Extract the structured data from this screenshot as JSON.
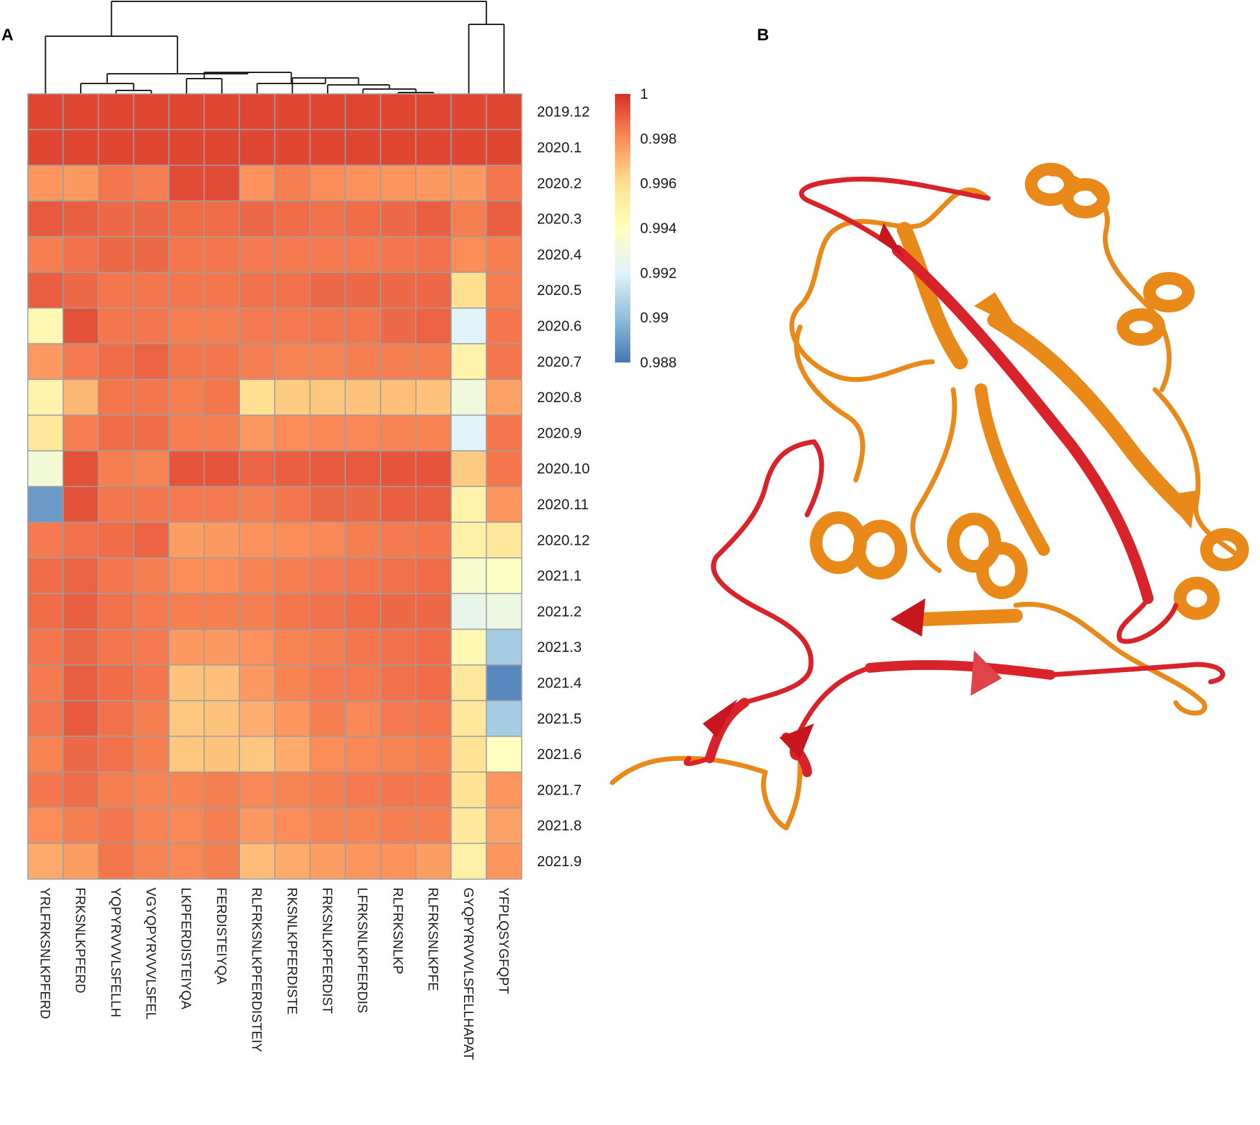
{
  "panels": {
    "a_label": "A",
    "b_label": "B"
  },
  "chart_data": {
    "type": "heatmap",
    "title": "",
    "rows": [
      "2019.12",
      "2020.1",
      "2020.2",
      "2020.3",
      "2020.4",
      "2020.5",
      "2020.6",
      "2020.7",
      "2020.8",
      "2020.9",
      "2020.10",
      "2020.11",
      "2020.12",
      "2021.1",
      "2021.2",
      "2021.3",
      "2021.4",
      "2021.5",
      "2021.6",
      "2021.7",
      "2021.8",
      "2021.9"
    ],
    "columns": [
      "YRLFRKSNLKPFERD",
      "FRKSNLKPFERD",
      "YQPYRVVVLSFELLH",
      "VGYQPYRVVVLSFEL",
      "LKPFERDISTEIYQA",
      "FERDISTEIYQA",
      "RLFRKSNLKPFERDISTEIY",
      "RKSNLKPFERDISTE",
      "FRKSNLKPFERDIST",
      "LFRKSNLKPFERDIS",
      "RLFRKSNLKP",
      "RLFRKSNLKPFE",
      "GYQPYRVVVLSFELLHAPAT",
      "YFPLQSYGFQPT"
    ],
    "values": [
      [
        0.9995,
        0.9995,
        0.9995,
        0.9995,
        0.9995,
        0.9995,
        0.9995,
        0.9995,
        0.9995,
        0.9995,
        0.9995,
        0.9995,
        0.9995,
        0.9995
      ],
      [
        0.9995,
        0.9995,
        0.9995,
        0.9995,
        0.9995,
        0.9995,
        0.9995,
        0.9995,
        0.9995,
        0.9995,
        0.9995,
        0.9995,
        0.9995,
        0.9995
      ],
      [
        0.9978,
        0.9977,
        0.9985,
        0.9983,
        0.9994,
        0.9994,
        0.9979,
        0.9983,
        0.998,
        0.9979,
        0.9978,
        0.9977,
        0.9977,
        0.9985
      ],
      [
        0.9991,
        0.999,
        0.9988,
        0.9988,
        0.9987,
        0.9987,
        0.9988,
        0.9987,
        0.9986,
        0.9987,
        0.9988,
        0.999,
        0.9983,
        0.999
      ],
      [
        0.9983,
        0.9986,
        0.9988,
        0.9988,
        0.9985,
        0.9985,
        0.9984,
        0.9984,
        0.9984,
        0.9984,
        0.9985,
        0.9986,
        0.998,
        0.9983
      ],
      [
        0.999,
        0.9988,
        0.9985,
        0.9985,
        0.9985,
        0.9985,
        0.9986,
        0.9986,
        0.9988,
        0.9988,
        0.9988,
        0.9988,
        0.996,
        0.9983
      ],
      [
        0.9945,
        0.9993,
        0.9985,
        0.9985,
        0.9983,
        0.9983,
        0.9984,
        0.9984,
        0.9985,
        0.9985,
        0.9988,
        0.9989,
        0.992,
        0.9985
      ],
      [
        0.9977,
        0.9984,
        0.9987,
        0.9989,
        0.9985,
        0.9985,
        0.9983,
        0.9982,
        0.9982,
        0.9983,
        0.9983,
        0.9983,
        0.9948,
        0.9985
      ],
      [
        0.9948,
        0.997,
        0.9985,
        0.9985,
        0.9983,
        0.9985,
        0.996,
        0.9965,
        0.9966,
        0.9967,
        0.9968,
        0.9967,
        0.993,
        0.9975
      ],
      [
        0.9955,
        0.9983,
        0.9987,
        0.9987,
        0.9983,
        0.9983,
        0.9977,
        0.998,
        0.9981,
        0.9981,
        0.9982,
        0.9982,
        0.992,
        0.9985
      ],
      [
        0.9932,
        0.9993,
        0.9983,
        0.9982,
        0.9992,
        0.9992,
        0.9989,
        0.999,
        0.9991,
        0.9991,
        0.9992,
        0.9992,
        0.9965,
        0.9985
      ],
      [
        0.989,
        0.9993,
        0.9985,
        0.9985,
        0.9984,
        0.9984,
        0.9983,
        0.9985,
        0.9988,
        0.9988,
        0.999,
        0.999,
        0.9948,
        0.9978
      ],
      [
        0.9984,
        0.9986,
        0.9987,
        0.9989,
        0.9976,
        0.9977,
        0.9979,
        0.998,
        0.9981,
        0.9983,
        0.9984,
        0.9985,
        0.995,
        0.9955
      ],
      [
        0.9987,
        0.9989,
        0.9985,
        0.9983,
        0.998,
        0.998,
        0.9982,
        0.9983,
        0.9984,
        0.9985,
        0.9986,
        0.9987,
        0.9935,
        0.9938
      ],
      [
        0.9987,
        0.999,
        0.9986,
        0.9984,
        0.9983,
        0.9983,
        0.9983,
        0.9985,
        0.9986,
        0.9987,
        0.9988,
        0.9988,
        0.9925,
        0.9928
      ],
      [
        0.9985,
        0.9988,
        0.9985,
        0.9984,
        0.9977,
        0.9977,
        0.9979,
        0.9982,
        0.9983,
        0.9985,
        0.9986,
        0.9987,
        0.9945,
        0.9905
      ],
      [
        0.9984,
        0.999,
        0.9987,
        0.9985,
        0.9967,
        0.9968,
        0.9977,
        0.9982,
        0.9984,
        0.9984,
        0.9986,
        0.9987,
        0.9955,
        0.9885
      ],
      [
        0.9985,
        0.9991,
        0.9986,
        0.9983,
        0.9966,
        0.9967,
        0.9972,
        0.9978,
        0.9983,
        0.9981,
        0.9984,
        0.9985,
        0.9955,
        0.9905
      ],
      [
        0.9982,
        0.9988,
        0.9986,
        0.9983,
        0.9966,
        0.9967,
        0.9966,
        0.9973,
        0.998,
        0.9981,
        0.9982,
        0.9983,
        0.9958,
        0.994
      ],
      [
        0.9985,
        0.9987,
        0.9983,
        0.9982,
        0.9982,
        0.9983,
        0.9981,
        0.9982,
        0.9983,
        0.9984,
        0.9985,
        0.9985,
        0.9958,
        0.9978
      ],
      [
        0.998,
        0.9983,
        0.9985,
        0.9982,
        0.9981,
        0.9983,
        0.9977,
        0.998,
        0.9982,
        0.9982,
        0.9983,
        0.9983,
        0.9955,
        0.9975
      ],
      [
        0.9973,
        0.9976,
        0.9985,
        0.9982,
        0.9981,
        0.9983,
        0.9969,
        0.9973,
        0.9976,
        0.9978,
        0.9979,
        0.9976,
        0.995,
        0.9978
      ]
    ],
    "colorbar": {
      "ticks": [
        "1",
        "0.998",
        "0.996",
        "0.994",
        "0.992",
        "0.99",
        "0.988"
      ],
      "range": [
        0.988,
        1
      ]
    },
    "colormap": [
      "#4575b4",
      "#91bfdb",
      "#e0f3f8",
      "#ffffbf",
      "#fee090",
      "#fc8d59",
      "#d73027"
    ],
    "grid_color": "#9e9e9e",
    "structure_colors": {
      "orange": "#e8891a",
      "red": "#d8232a"
    }
  }
}
